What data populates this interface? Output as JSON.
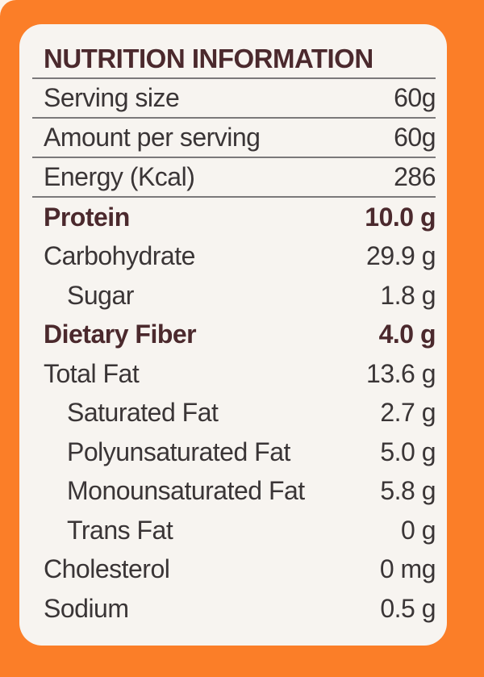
{
  "colors": {
    "background_orange": "#FB7E28",
    "card_background": "#F7F4F0",
    "heading_maroon": "#4B292D",
    "body_text": "#3A3536",
    "divider_gray": "#7b797a"
  },
  "table": {
    "title": "NUTRITION INFORMATION",
    "rows": [
      {
        "label": "Serving size",
        "value": "60g"
      },
      {
        "label": "Amount per serving",
        "value": "60g"
      },
      {
        "label": "Energy (Kcal)",
        "value": "286"
      },
      {
        "label": "Protein",
        "value": "10.0 g"
      },
      {
        "label": "Carbohydrate",
        "value": "29.9 g"
      },
      {
        "label": "Sugar",
        "value": "1.8 g"
      },
      {
        "label": "Dietary Fiber",
        "value": "4.0 g"
      },
      {
        "label": "Total Fat",
        "value": "13.6 g"
      },
      {
        "label": "Saturated Fat",
        "value": "2.7 g"
      },
      {
        "label": "Polyunsaturated Fat",
        "value": "5.0 g"
      },
      {
        "label": "Monounsaturated Fat",
        "value": "5.8 g"
      },
      {
        "label": "Trans Fat",
        "value": "0 g"
      },
      {
        "label": "Cholesterol",
        "value": "0 mg"
      },
      {
        "label": "Sodium",
        "value": "0.5 g"
      }
    ]
  }
}
